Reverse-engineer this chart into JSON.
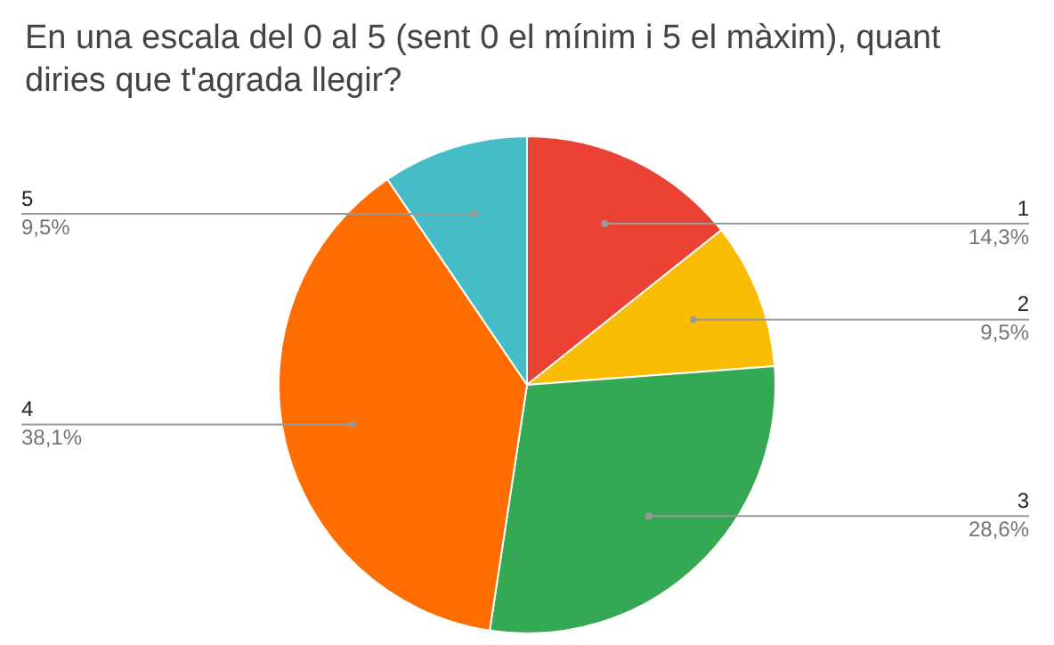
{
  "chart_data": {
    "type": "pie",
    "title": "En una escala del 0 al 5 (sent 0 el mínim i 5 el màxim), quant diries que t'agrada llegir?",
    "categories": [
      "1",
      "2",
      "3",
      "4",
      "5"
    ],
    "values": [
      14.3,
      9.5,
      28.6,
      38.1,
      9.5
    ],
    "colors": [
      "#ea4335",
      "#fbbc04",
      "#34a853",
      "#ff6d01",
      "#46bdc6"
    ],
    "value_labels": [
      "14,3%",
      "9,5%",
      "28,6%",
      "38,1%",
      "9,5%"
    ],
    "legend": false
  }
}
